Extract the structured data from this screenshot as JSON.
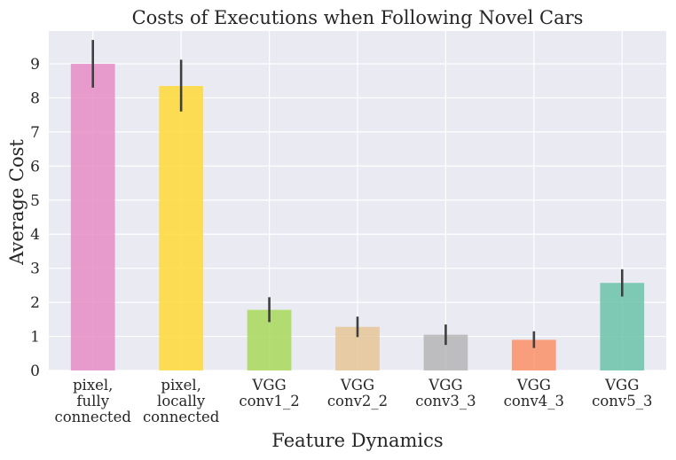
{
  "chart_data": {
    "type": "bar",
    "title": "Costs of Executions when Following Novel Cars",
    "xlabel": "Feature Dynamics",
    "ylabel": "Average Cost",
    "ylim": [
      0,
      10
    ],
    "yticks": [
      "0",
      "1",
      "2",
      "3",
      "4",
      "5",
      "6",
      "7",
      "8",
      "9"
    ],
    "grid": true,
    "categories": [
      [
        "pixel,",
        "fully",
        "connected"
      ],
      [
        "pixel,",
        "locally",
        "connected"
      ],
      [
        "VGG",
        "conv1_2"
      ],
      [
        "VGG",
        "conv2_2"
      ],
      [
        "VGG",
        "conv3_3"
      ],
      [
        "VGG",
        "conv4_3"
      ],
      [
        "VGG",
        "conv5_3"
      ]
    ],
    "values": [
      9.0,
      8.35,
      1.78,
      1.28,
      1.05,
      0.9,
      2.57
    ],
    "error_low": [
      8.3,
      7.6,
      1.42,
      0.98,
      0.75,
      0.66,
      2.17
    ],
    "error_high": [
      9.7,
      9.12,
      2.15,
      1.58,
      1.35,
      1.15,
      2.97
    ],
    "colors": [
      "#e78ac3",
      "#ffd92f",
      "#a6d854",
      "#e5c494",
      "#b3b3b3",
      "#fc8d62",
      "#66c2a5"
    ],
    "error_color": "#3f3f3f",
    "background": "#eaeaf2"
  }
}
